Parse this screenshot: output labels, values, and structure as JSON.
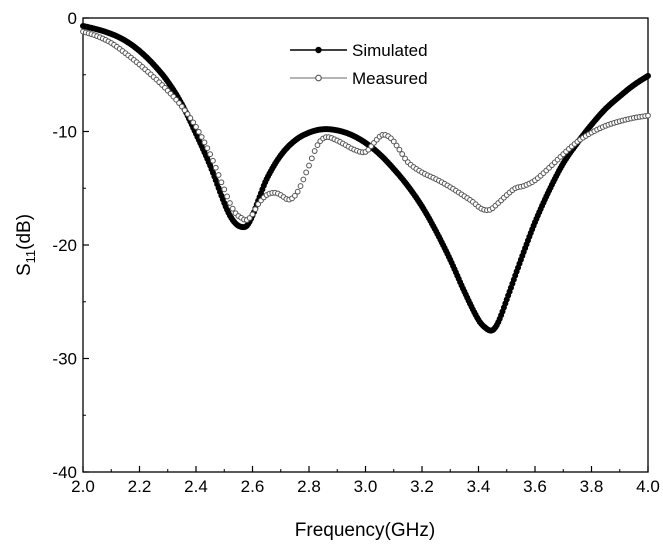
{
  "chart_data": {
    "type": "line",
    "title": "",
    "xlabel": "Frequency(GHz)",
    "ylabel_main": "S",
    "ylabel_sub": "11",
    "ylabel_unit": "(dB)",
    "xlim": [
      2.0,
      4.0
    ],
    "ylim": [
      -40,
      0
    ],
    "x_ticks": [
      2.0,
      2.2,
      2.4,
      2.6,
      2.8,
      3.0,
      3.2,
      3.4,
      3.6,
      3.8,
      4.0
    ],
    "x_tick_labels": [
      "2.0",
      "2.2",
      "2.4",
      "2.6",
      "2.8",
      "3.0",
      "3.2",
      "3.4",
      "3.6",
      "3.8",
      "4.0"
    ],
    "y_ticks": [
      0,
      -10,
      -20,
      -30,
      -40
    ],
    "y_tick_labels": [
      "0",
      "-10",
      "-20",
      "-30",
      "-40"
    ],
    "grid": false,
    "legend_position": "top-center",
    "series": [
      {
        "name": "Simulated",
        "color": "#000000",
        "marker": "filled-circle",
        "x": [
          2.0,
          2.05,
          2.1,
          2.15,
          2.2,
          2.25,
          2.3,
          2.35,
          2.4,
          2.45,
          2.5,
          2.52,
          2.54,
          2.56,
          2.58,
          2.6,
          2.62,
          2.65,
          2.7,
          2.75,
          2.8,
          2.85,
          2.9,
          2.95,
          3.0,
          3.05,
          3.1,
          3.15,
          3.2,
          3.25,
          3.3,
          3.35,
          3.4,
          3.43,
          3.45,
          3.47,
          3.5,
          3.55,
          3.6,
          3.65,
          3.7,
          3.75,
          3.8,
          3.85,
          3.9,
          3.95,
          4.0
        ],
        "y": [
          -0.7,
          -1.0,
          -1.4,
          -2.0,
          -2.9,
          -4.1,
          -5.6,
          -7.6,
          -10.2,
          -13.0,
          -16.3,
          -17.4,
          -18.1,
          -18.4,
          -18.3,
          -17.4,
          -16.1,
          -14.2,
          -12.1,
          -10.8,
          -10.1,
          -9.8,
          -9.9,
          -10.3,
          -11.0,
          -12.0,
          -13.3,
          -14.8,
          -16.6,
          -18.8,
          -21.3,
          -24.1,
          -26.6,
          -27.4,
          -27.5,
          -26.8,
          -24.8,
          -21.3,
          -18.0,
          -15.2,
          -12.8,
          -11.0,
          -9.4,
          -8.0,
          -6.9,
          -5.9,
          -5.1
        ]
      },
      {
        "name": "Measured",
        "color": "#555555",
        "marker": "open-circle",
        "x": [
          2.0,
          2.05,
          2.1,
          2.15,
          2.2,
          2.25,
          2.3,
          2.35,
          2.4,
          2.45,
          2.5,
          2.52,
          2.54,
          2.56,
          2.58,
          2.6,
          2.62,
          2.65,
          2.68,
          2.7,
          2.73,
          2.76,
          2.8,
          2.83,
          2.86,
          2.9,
          2.93,
          2.96,
          3.0,
          3.03,
          3.06,
          3.09,
          3.12,
          3.15,
          3.2,
          3.25,
          3.3,
          3.35,
          3.38,
          3.41,
          3.44,
          3.47,
          3.5,
          3.53,
          3.56,
          3.6,
          3.65,
          3.7,
          3.75,
          3.8,
          3.85,
          3.9,
          3.95,
          4.0
        ],
        "y": [
          -1.2,
          -1.6,
          -2.2,
          -3.1,
          -4.1,
          -5.2,
          -6.4,
          -7.8,
          -9.6,
          -12.0,
          -15.1,
          -16.3,
          -17.2,
          -17.6,
          -17.8,
          -17.3,
          -16.4,
          -15.6,
          -15.4,
          -15.6,
          -16.0,
          -15.3,
          -13.0,
          -11.2,
          -10.5,
          -10.8,
          -11.2,
          -11.6,
          -11.8,
          -11.0,
          -10.3,
          -10.6,
          -11.6,
          -12.7,
          -13.6,
          -14.2,
          -14.9,
          -15.7,
          -16.2,
          -16.8,
          -16.9,
          -16.3,
          -15.6,
          -15.0,
          -14.8,
          -14.3,
          -13.2,
          -12.0,
          -10.9,
          -10.1,
          -9.5,
          -9.1,
          -8.8,
          -8.6
        ]
      }
    ]
  }
}
